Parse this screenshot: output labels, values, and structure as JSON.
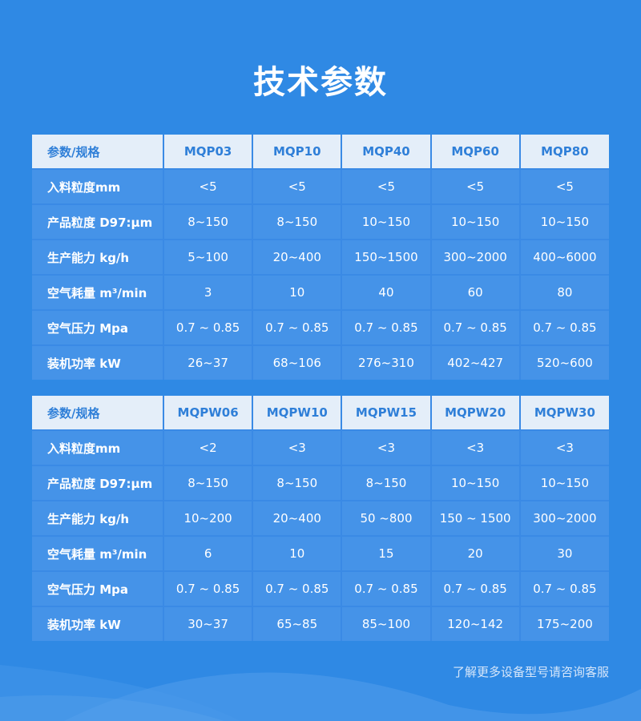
{
  "title": "技术参数",
  "colors": {
    "background": "#2f89e4",
    "cell": "#4593e8",
    "header_bg": "#e4eef9",
    "header_text": "#2f7fd8"
  },
  "tables": [
    {
      "header": [
        "参数/规格",
        "MQP03",
        "MQP10",
        "MQP40",
        "MQP60",
        "MQP80"
      ],
      "rows": [
        [
          "入料粒度mm",
          "<5",
          "<5",
          "<5",
          "<5",
          "<5"
        ],
        [
          "产品粒度 D97:μm",
          "8~150",
          "8~150",
          "10~150",
          "10~150",
          "10~150"
        ],
        [
          "生产能力 kg/h",
          "5~100",
          "20~400",
          "150~1500",
          "300~2000",
          "400~6000"
        ],
        [
          "空气耗量 m³/min",
          "3",
          "10",
          "40",
          "60",
          "80"
        ],
        [
          "空气压力 Mpa",
          "0.7 ~ 0.85",
          "0.7 ~ 0.85",
          "0.7 ~ 0.85",
          "0.7 ~ 0.85",
          "0.7 ~ 0.85"
        ],
        [
          "装机功率 kW",
          "26~37",
          "68~106",
          "276~310",
          "402~427",
          "520~600"
        ]
      ]
    },
    {
      "header": [
        "参数/规格",
        "MQPW06",
        "MQPW10",
        "MQPW15",
        "MQPW20",
        "MQPW30"
      ],
      "rows": [
        [
          "入料粒度mm",
          "<2",
          "<3",
          "<3",
          "<3",
          "<3"
        ],
        [
          "产品粒度 D97:μm",
          "8~150",
          "8~150",
          "8~150",
          "10~150",
          "10~150"
        ],
        [
          "生产能力 kg/h",
          "10~200",
          "20~400",
          "50 ~800",
          "150 ~ 1500",
          "300~2000"
        ],
        [
          "空气耗量 m³/min",
          "6",
          "10",
          "15",
          "20",
          "30"
        ],
        [
          "空气压力 Mpa",
          "0.7 ~ 0.85",
          "0.7 ~ 0.85",
          "0.7 ~ 0.85",
          "0.7 ~ 0.85",
          "0.7 ~ 0.85"
        ],
        [
          "装机功率 kW",
          "30~37",
          "65~85",
          "85~100",
          "120~142",
          "175~200"
        ]
      ]
    }
  ],
  "footer_note": "了解更多设备型号请咨询客服"
}
